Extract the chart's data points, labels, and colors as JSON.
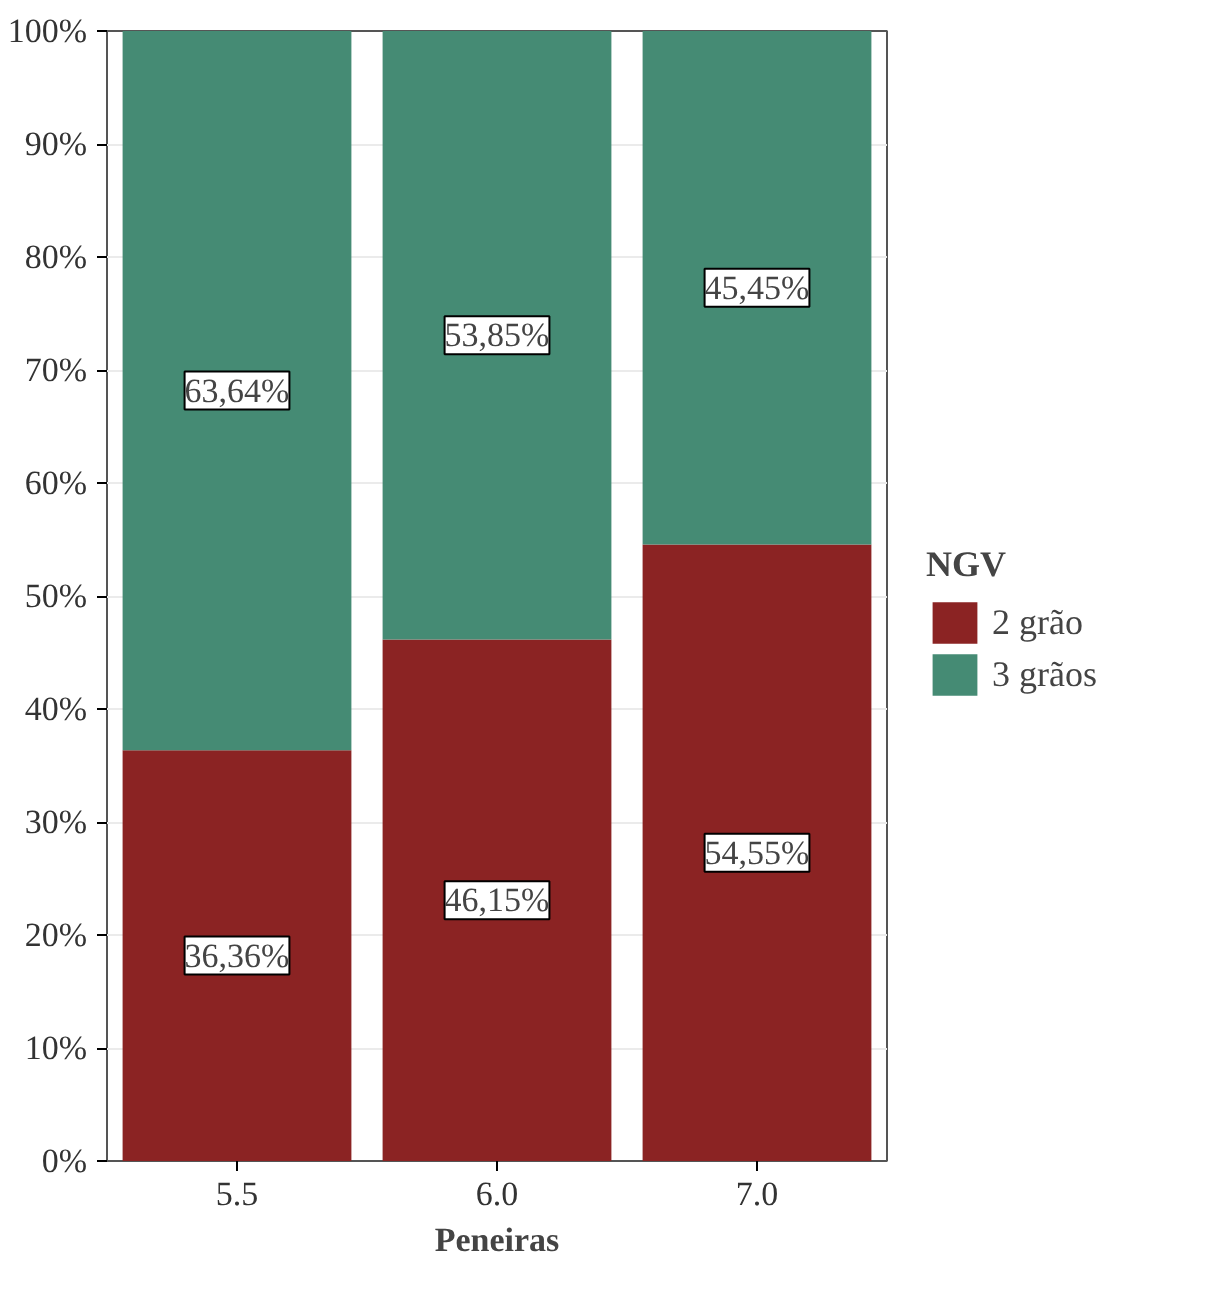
{
  "chart_data": {
    "type": "bar",
    "stacked": true,
    "xlabel": "Peneiras",
    "legend_title": "NGV",
    "categories": [
      "5.5",
      "6.0",
      "7.0"
    ],
    "series": [
      {
        "name": "2 grão",
        "color": "#8b2323",
        "values": [
          36.36,
          46.15,
          54.55
        ],
        "value_labels": [
          "36,36%",
          "46,15%",
          "54,55%"
        ]
      },
      {
        "name": "3 grãos",
        "color": "#458b74",
        "values": [
          63.64,
          53.85,
          45.45
        ],
        "value_labels": [
          "63,64%",
          "53,85%",
          "45,45%"
        ]
      }
    ],
    "ylim": [
      0,
      100
    ],
    "yticks": [
      {
        "value": 0,
        "label": "0%"
      },
      {
        "value": 10,
        "label": "10%"
      },
      {
        "value": 20,
        "label": "20%"
      },
      {
        "value": 30,
        "label": "30%"
      },
      {
        "value": 40,
        "label": "40%"
      },
      {
        "value": 50,
        "label": "50%"
      },
      {
        "value": 60,
        "label": "60%"
      },
      {
        "value": 70,
        "label": "70%"
      },
      {
        "value": 80,
        "label": "80%"
      },
      {
        "value": 90,
        "label": "90%"
      },
      {
        "value": 100,
        "label": "100%"
      }
    ],
    "grid": "y",
    "legend": "right"
  }
}
